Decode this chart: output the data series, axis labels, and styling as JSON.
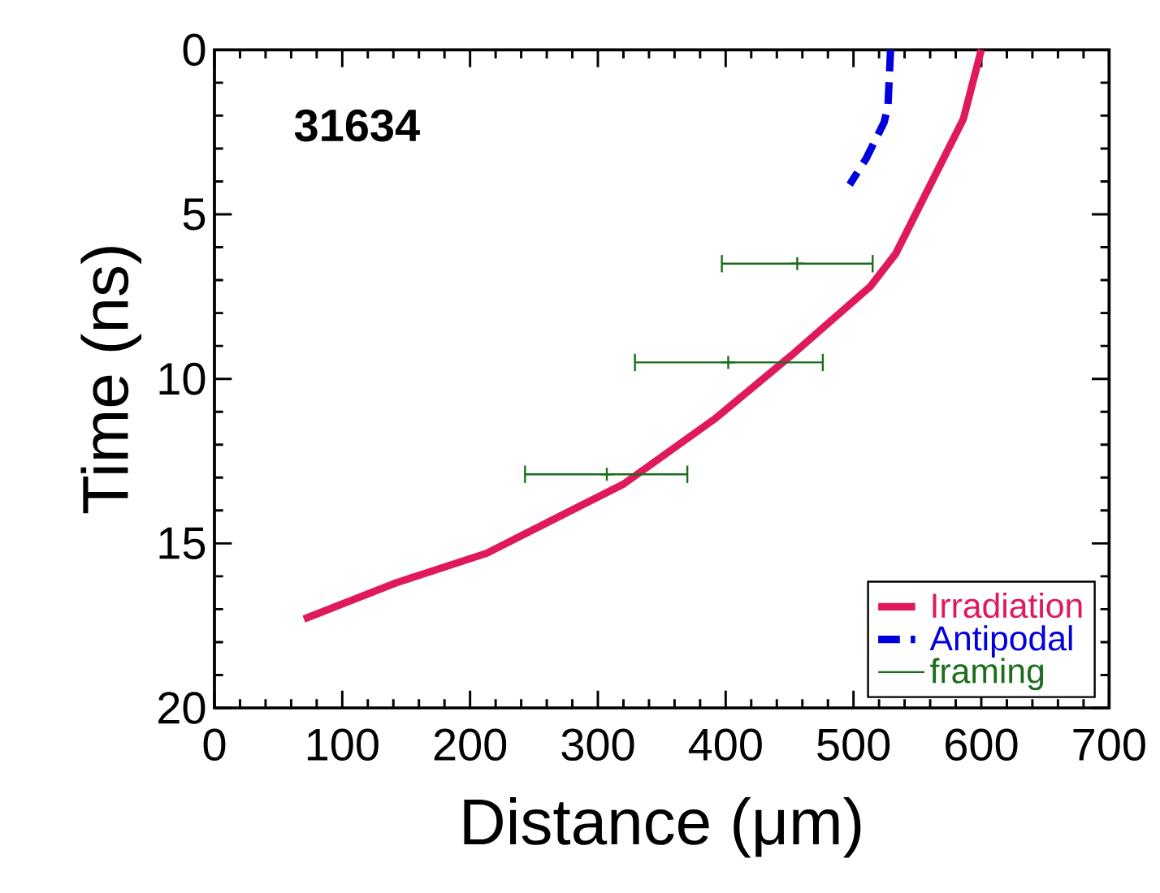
{
  "chart_data": {
    "type": "line",
    "xlabel": "Distance (μm)",
    "ylabel": "Time (ns)",
    "annotations": [
      "31634"
    ],
    "xlim": [
      0,
      700
    ],
    "xticks": [
      0,
      100,
      200,
      300,
      400,
      500,
      600,
      700
    ],
    "ylim": [
      20,
      0
    ],
    "yticks": [
      0,
      5,
      10,
      15,
      20
    ],
    "legend": "bottom right",
    "series": [
      {
        "name": "Irradiation",
        "color": "#e0195a",
        "line_style": "solid",
        "x": [
          600,
          586,
          533,
          513,
          451,
          392,
          320,
          269,
          213,
          142,
          70
        ],
        "values": [
          0,
          2.1,
          6.2,
          7.2,
          9.3,
          11.2,
          13.2,
          14.2,
          15.3,
          16.2,
          17.3
        ]
      },
      {
        "name": "Antipodal",
        "color": "#0000dd",
        "line_style": "dashed",
        "x": [
          529,
          527,
          524,
          510,
          497
        ],
        "values": [
          0,
          1.7,
          2.2,
          3.3,
          4.1
        ]
      },
      {
        "name": "framing",
        "type": "scatter",
        "marker": "cross",
        "color": "#1a6e1a",
        "x": [
          456,
          402,
          307
        ],
        "values": [
          6.5,
          9.5,
          12.9
        ],
        "xerrors": [
          [
            397,
            515
          ],
          [
            329,
            476
          ],
          [
            243,
            370
          ]
        ]
      }
    ]
  }
}
